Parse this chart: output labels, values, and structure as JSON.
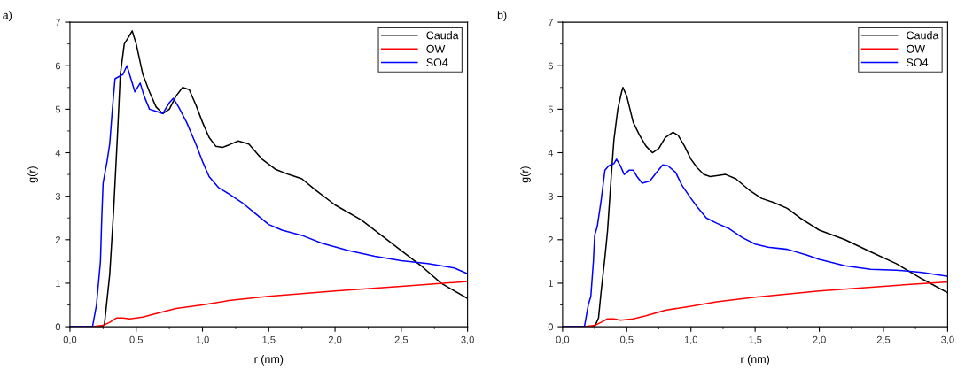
{
  "chart_data": [
    {
      "type": "line",
      "xlabel": "r (nm)",
      "ylabel": "g(r)",
      "annotations": [
        "a)"
      ],
      "legend": "top right",
      "grid": false,
      "marker": "none",
      "line_style": "solid",
      "xlim": [
        0,
        3
      ],
      "ylim": [
        0,
        7
      ],
      "xticks": [
        {
          "value": 0,
          "label": "0,0"
        },
        {
          "value": 0.25,
          "label": null
        },
        {
          "value": 0.5,
          "label": "0,5"
        },
        {
          "value": 0.75,
          "label": null
        },
        {
          "value": 1,
          "label": "1,0"
        },
        {
          "value": 1.25,
          "label": null
        },
        {
          "value": 1.5,
          "label": "1,5"
        },
        {
          "value": 1.75,
          "label": null
        },
        {
          "value": 2,
          "label": "2,0"
        },
        {
          "value": 2.25,
          "label": null
        },
        {
          "value": 2.5,
          "label": "2,5"
        },
        {
          "value": 2.75,
          "label": null
        },
        {
          "value": 3,
          "label": "3,0"
        }
      ],
      "yticks": [
        0,
        {
          "value": 0.5,
          "label": null
        },
        1,
        {
          "value": 1.5,
          "label": null
        },
        2,
        {
          "value": 2.5,
          "label": null
        },
        3,
        {
          "value": 3.5,
          "label": null
        },
        4,
        {
          "value": 4.5,
          "label": null
        },
        5,
        {
          "value": 5.5,
          "label": null
        },
        6,
        {
          "value": 6.5,
          "label": null
        },
        7
      ],
      "series": [
        {
          "name": "Cauda",
          "color": "#000000",
          "x": [
            0,
            0.24,
            0.26,
            0.3,
            0.33,
            0.36,
            0.38,
            0.41,
            0.45,
            0.47,
            0.5,
            0.55,
            0.6,
            0.65,
            0.7,
            0.75,
            0.8,
            0.85,
            0.9,
            0.95,
            1.0,
            1.05,
            1.1,
            1.15,
            1.2,
            1.27,
            1.35,
            1.45,
            1.55,
            1.65,
            1.75,
            1.85,
            2.0,
            2.2,
            2.35,
            2.5,
            2.65,
            2.8,
            3.0
          ],
          "values": [
            0,
            0,
            0.05,
            1.2,
            2.7,
            4.5,
            5.8,
            6.5,
            6.7,
            6.8,
            6.5,
            5.8,
            5.4,
            5.05,
            4.9,
            5.0,
            5.3,
            5.5,
            5.45,
            5.1,
            4.7,
            4.35,
            4.15,
            4.12,
            4.18,
            4.27,
            4.2,
            3.85,
            3.62,
            3.5,
            3.4,
            3.15,
            2.8,
            2.45,
            2.1,
            1.75,
            1.4,
            1.0,
            0.65
          ]
        },
        {
          "name": "OW",
          "color": "#ff0000",
          "x": [
            0,
            0.17,
            0.25,
            0.3,
            0.35,
            0.4,
            0.45,
            0.55,
            0.65,
            0.8,
            1.0,
            1.2,
            1.5,
            2.0,
            2.5,
            3.0
          ],
          "values": [
            0,
            0,
            0.03,
            0.1,
            0.2,
            0.2,
            0.18,
            0.22,
            0.3,
            0.42,
            0.5,
            0.6,
            0.7,
            0.82,
            0.93,
            1.04
          ]
        },
        {
          "name": "SO4",
          "color": "#0000ff",
          "x": [
            0,
            0.17,
            0.2,
            0.23,
            0.24,
            0.25,
            0.28,
            0.3,
            0.32,
            0.34,
            0.37,
            0.4,
            0.43,
            0.46,
            0.49,
            0.53,
            0.56,
            0.6,
            0.65,
            0.7,
            0.75,
            0.78,
            0.82,
            0.88,
            0.95,
            1.0,
            1.05,
            1.12,
            1.2,
            1.3,
            1.4,
            1.5,
            1.6,
            1.75,
            1.9,
            2.1,
            2.3,
            2.5,
            2.7,
            2.9,
            3.0
          ],
          "values": [
            0,
            0,
            0.5,
            1.5,
            2.5,
            3.3,
            3.8,
            4.2,
            5.0,
            5.7,
            5.75,
            5.8,
            6.0,
            5.7,
            5.4,
            5.6,
            5.3,
            5.0,
            4.95,
            4.9,
            5.15,
            5.25,
            5.05,
            4.7,
            4.2,
            3.8,
            3.45,
            3.2,
            3.05,
            2.85,
            2.6,
            2.35,
            2.22,
            2.1,
            1.92,
            1.75,
            1.62,
            1.52,
            1.45,
            1.35,
            1.22
          ]
        }
      ]
    },
    {
      "type": "line",
      "xlabel": "r (nm)",
      "ylabel": "g(r)",
      "annotations": [
        "b)"
      ],
      "legend": "top right",
      "grid": false,
      "marker": "none",
      "line_style": "solid",
      "xlim": [
        0,
        3
      ],
      "ylim": [
        0,
        7
      ],
      "xticks": [
        {
          "value": 0,
          "label": "0,0"
        },
        {
          "value": 0.25,
          "label": null
        },
        {
          "value": 0.5,
          "label": "0,5"
        },
        {
          "value": 0.75,
          "label": null
        },
        {
          "value": 1,
          "label": "1,0"
        },
        {
          "value": 1.25,
          "label": null
        },
        {
          "value": 1.5,
          "label": "1,5"
        },
        {
          "value": 1.75,
          "label": null
        },
        {
          "value": 2,
          "label": "2,0"
        },
        {
          "value": 2.25,
          "label": null
        },
        {
          "value": 2.5,
          "label": "2,5"
        },
        {
          "value": 2.75,
          "label": null
        },
        {
          "value": 3,
          "label": "3,0"
        }
      ],
      "yticks": [
        0,
        {
          "value": 0.5,
          "label": null
        },
        1,
        {
          "value": 1.5,
          "label": null
        },
        2,
        {
          "value": 2.5,
          "label": null
        },
        3,
        {
          "value": 3.5,
          "label": null
        },
        4,
        {
          "value": 4.5,
          "label": null
        },
        5,
        {
          "value": 5.5,
          "label": null
        },
        6,
        {
          "value": 6.5,
          "label": null
        },
        7
      ],
      "series": [
        {
          "name": "Cauda",
          "color": "#000000",
          "x": [
            0,
            0.25,
            0.28,
            0.3,
            0.33,
            0.35,
            0.38,
            0.4,
            0.43,
            0.46,
            0.47,
            0.5,
            0.55,
            0.6,
            0.65,
            0.7,
            0.75,
            0.8,
            0.86,
            0.9,
            0.95,
            1.0,
            1.05,
            1.1,
            1.15,
            1.2,
            1.27,
            1.35,
            1.45,
            1.55,
            1.65,
            1.75,
            1.85,
            2.0,
            2.2,
            2.4,
            2.6,
            2.8,
            3.0
          ],
          "values": [
            0,
            0,
            0.2,
            0.8,
            1.6,
            2.2,
            3.5,
            4.3,
            5.0,
            5.4,
            5.5,
            5.3,
            4.7,
            4.4,
            4.15,
            4.0,
            4.1,
            4.35,
            4.47,
            4.4,
            4.15,
            3.85,
            3.65,
            3.5,
            3.45,
            3.47,
            3.5,
            3.4,
            3.15,
            2.95,
            2.85,
            2.72,
            2.5,
            2.22,
            2.0,
            1.72,
            1.45,
            1.1,
            0.78
          ]
        },
        {
          "name": "OW",
          "color": "#ff0000",
          "x": [
            0,
            0.17,
            0.25,
            0.3,
            0.35,
            0.4,
            0.45,
            0.55,
            0.65,
            0.8,
            1.0,
            1.2,
            1.5,
            2.0,
            2.5,
            3.0
          ],
          "values": [
            0,
            0,
            0.03,
            0.1,
            0.18,
            0.18,
            0.15,
            0.18,
            0.25,
            0.38,
            0.47,
            0.57,
            0.68,
            0.82,
            0.93,
            1.03
          ]
        },
        {
          "name": "SO4",
          "color": "#0000ff",
          "x": [
            0,
            0.17,
            0.2,
            0.22,
            0.24,
            0.25,
            0.27,
            0.3,
            0.33,
            0.36,
            0.4,
            0.42,
            0.45,
            0.48,
            0.52,
            0.55,
            0.58,
            0.62,
            0.68,
            0.72,
            0.78,
            0.82,
            0.88,
            0.93,
            1.0,
            1.05,
            1.12,
            1.2,
            1.3,
            1.4,
            1.5,
            1.6,
            1.75,
            1.9,
            2.0,
            2.2,
            2.4,
            2.6,
            2.8,
            3.0
          ],
          "values": [
            0,
            0,
            0.5,
            0.7,
            1.5,
            2.1,
            2.3,
            2.9,
            3.6,
            3.7,
            3.75,
            3.85,
            3.7,
            3.5,
            3.6,
            3.6,
            3.45,
            3.3,
            3.35,
            3.5,
            3.72,
            3.7,
            3.55,
            3.25,
            2.95,
            2.75,
            2.5,
            2.38,
            2.25,
            2.05,
            1.9,
            1.83,
            1.78,
            1.65,
            1.55,
            1.4,
            1.32,
            1.3,
            1.25,
            1.16
          ]
        }
      ]
    }
  ]
}
